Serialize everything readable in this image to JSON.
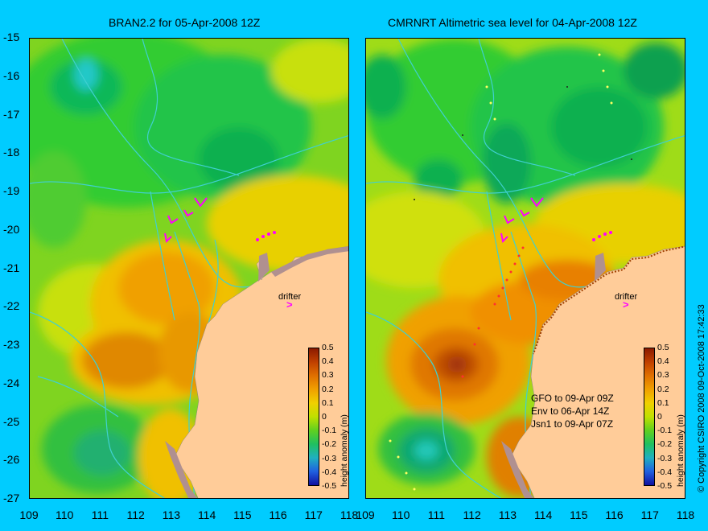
{
  "left_panel": {
    "title": "BRAN2.2 for 05-Apr-2008 12Z",
    "drifter_label": "drifter"
  },
  "right_panel": {
    "title": "CMRNRT Altimetric sea level  for 04-Apr-2008 12Z",
    "drifter_label": "drifter",
    "satellites": [
      "GFO to 09-Apr 09Z",
      "Env to 06-Apr 14Z",
      "Jsn1 to 09-Apr 07Z"
    ],
    "copyright": "© Copyright CSIRO 2008   09-Oct-2008 17:42:33"
  },
  "axes": {
    "lat_ticks": [
      "-15",
      "-16",
      "-17",
      "-18",
      "-19",
      "-20",
      "-21",
      "-22",
      "-23",
      "-24",
      "-25",
      "-26",
      "-27"
    ],
    "lon_ticks": [
      "109",
      "110",
      "111",
      "112",
      "113",
      "114",
      "115",
      "116",
      "117",
      "118"
    ]
  },
  "colorbar": {
    "title": "height anomaly (m)",
    "ticks": [
      "0.5",
      "0.4",
      "0.3",
      "0.2",
      "0.1",
      "0",
      "-0.1",
      "-0.2",
      "-0.3",
      "-0.4",
      "-0.5"
    ],
    "range": [
      -0.5,
      0.5
    ]
  },
  "colors": {
    "background": "#00ccff",
    "land": "#ffcc99",
    "drifter": "#ff00ff",
    "bathymetry": "#40d0d0"
  }
}
